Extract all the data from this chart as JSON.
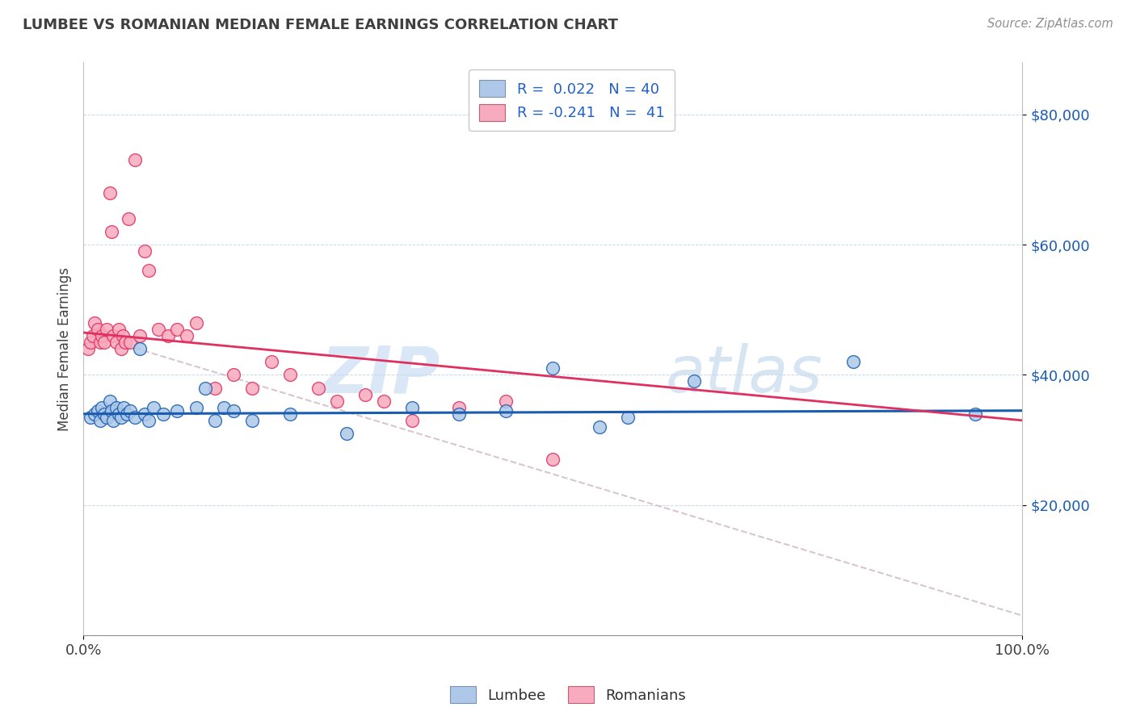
{
  "title": "LUMBEE VS ROMANIAN MEDIAN FEMALE EARNINGS CORRELATION CHART",
  "source": "Source: ZipAtlas.com",
  "xlabel": "",
  "ylabel": "Median Female Earnings",
  "xlim": [
    0,
    100
  ],
  "ylim": [
    0,
    88000
  ],
  "yticks": [
    20000,
    40000,
    60000,
    80000
  ],
  "ytick_labels": [
    "$20,000",
    "$40,000",
    "$60,000",
    "$80,000"
  ],
  "xtick_labels": [
    "0.0%",
    "100.0%"
  ],
  "legend_lumbee": "Lumbee",
  "legend_romanian": "Romanians",
  "R_lumbee": 0.022,
  "N_lumbee": 40,
  "R_romanian": -0.241,
  "N_romanian": 41,
  "lumbee_color": "#adc8e8",
  "romanian_color": "#f8aabe",
  "lumbee_line_color": "#1a5cb0",
  "romanian_line_color": "#e03060",
  "dashed_line_color": "#d0b8c0",
  "title_color": "#404040",
  "source_color": "#909090",
  "legend_text_color": "#2060c8",
  "watermark_zip_color": "#c8dff5",
  "watermark_atlas_color": "#b8cce8",
  "lumbee_x": [
    0.8,
    1.2,
    1.5,
    1.8,
    2.0,
    2.2,
    2.5,
    2.8,
    3.0,
    3.2,
    3.5,
    3.8,
    4.0,
    4.3,
    4.6,
    5.0,
    5.5,
    6.0,
    6.5,
    7.0,
    7.5,
    8.5,
    10.0,
    12.0,
    13.0,
    14.0,
    15.0,
    16.0,
    18.0,
    22.0,
    28.0,
    35.0,
    40.0,
    45.0,
    50.0,
    55.0,
    58.0,
    65.0,
    82.0,
    95.0
  ],
  "lumbee_y": [
    33500,
    34000,
    34500,
    33000,
    35000,
    34000,
    33500,
    36000,
    34500,
    33000,
    35000,
    34000,
    33500,
    35000,
    34000,
    34500,
    33500,
    44000,
    34000,
    33000,
    35000,
    34000,
    34500,
    35000,
    38000,
    33000,
    35000,
    34500,
    33000,
    34000,
    31000,
    35000,
    34000,
    34500,
    41000,
    32000,
    33500,
    39000,
    42000,
    34000
  ],
  "romanian_x": [
    0.5,
    0.8,
    1.0,
    1.2,
    1.5,
    1.8,
    2.0,
    2.2,
    2.5,
    2.8,
    3.0,
    3.2,
    3.5,
    3.8,
    4.0,
    4.2,
    4.5,
    4.8,
    5.0,
    5.5,
    6.0,
    6.5,
    7.0,
    8.0,
    9.0,
    10.0,
    11.0,
    12.0,
    14.0,
    16.0,
    18.0,
    20.0,
    22.0,
    25.0,
    27.0,
    30.0,
    32.0,
    35.0,
    40.0,
    45.0,
    50.0
  ],
  "romanian_y": [
    44000,
    45000,
    46000,
    48000,
    47000,
    45000,
    46000,
    45000,
    47000,
    68000,
    62000,
    46000,
    45000,
    47000,
    44000,
    46000,
    45000,
    64000,
    45000,
    73000,
    46000,
    59000,
    56000,
    47000,
    46000,
    47000,
    46000,
    48000,
    38000,
    40000,
    38000,
    42000,
    40000,
    38000,
    36000,
    37000,
    36000,
    33000,
    35000,
    36000,
    27000
  ],
  "lumbee_trend_y0": 34000,
  "lumbee_trend_y100": 34500,
  "romanian_trend_y0": 46500,
  "romanian_trend_y100": 33000,
  "dashed_y0": 46500,
  "dashed_y100": 3000
}
